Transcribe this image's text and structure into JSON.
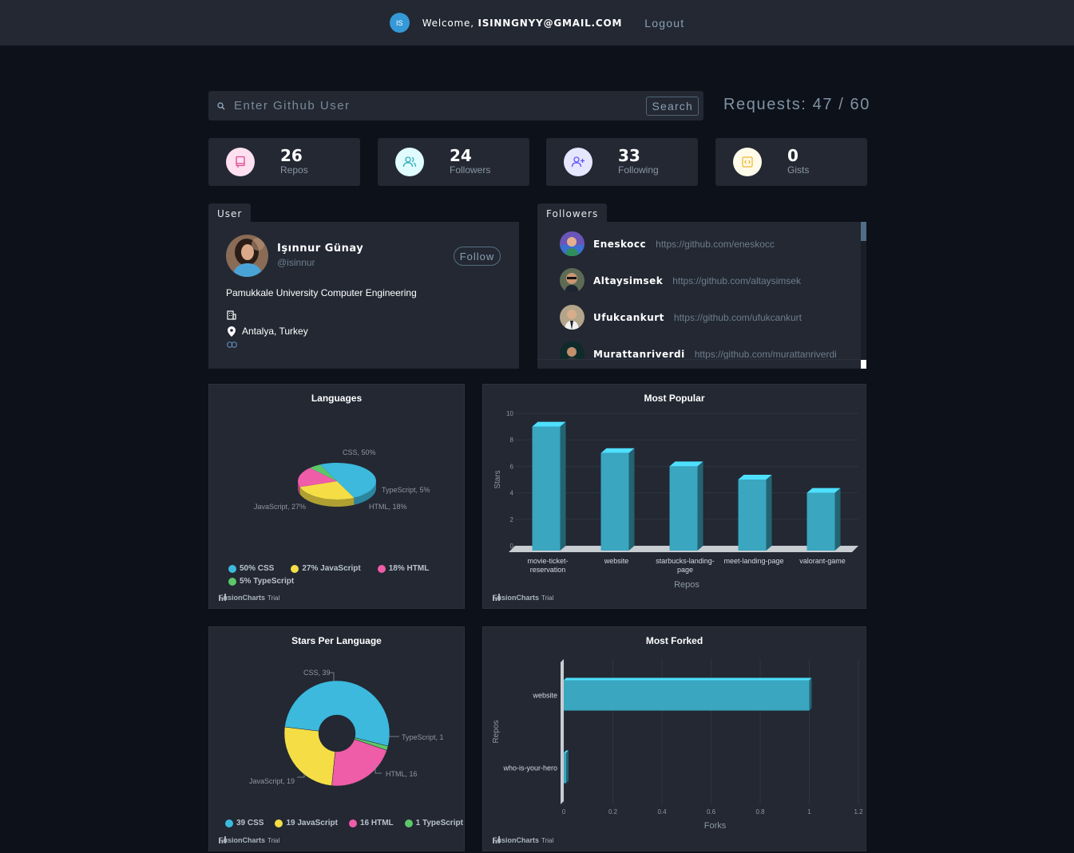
{
  "navbar": {
    "avatar_initials": "IS",
    "welcome_prefix": "Welcome, ",
    "user_email": "ISINNGNYY@GMAIL.COM",
    "logout_label": "Logout"
  },
  "search": {
    "placeholder": "Enter Github User",
    "button_label": "Search",
    "requests_text": "Requests: 47 / 60"
  },
  "stats": [
    {
      "value": "26",
      "label": "Repos",
      "icon": "repo-icon",
      "color": "#da4a91",
      "bg": "#ffe0f0"
    },
    {
      "value": "24",
      "label": "Followers",
      "icon": "users-icon",
      "color": "#2caeba",
      "bg": "#e0fcff"
    },
    {
      "value": "33",
      "label": "Following",
      "icon": "user-plus-icon",
      "color": "#5d55fa",
      "bg": "#e6e6ff"
    },
    {
      "value": "0",
      "label": "Gists",
      "icon": "code-icon",
      "color": "#f0b429",
      "bg": "#fffbea"
    }
  ],
  "user": {
    "tab_label": "User",
    "name": "Işınnur Günay",
    "handle": "@isinnur",
    "follow_label": "Follow",
    "bio": "Pamukkale University Computer Engineering",
    "company": "",
    "location": "Antalya, Turkey",
    "blog": ""
  },
  "followers": {
    "tab_label": "Followers",
    "items": [
      {
        "name": "Eneskocc",
        "url": "https://github.com/eneskocc"
      },
      {
        "name": "Altaysimsek",
        "url": "https://github.com/altaysimsek"
      },
      {
        "name": "Ufukcankurt",
        "url": "https://github.com/ufukcankurt"
      },
      {
        "name": "Murattanriverdi",
        "url": "https://github.com/murattanriverdi"
      }
    ]
  },
  "branding": {
    "name": "FusionCharts",
    "suffix": "Trial"
  },
  "colors": {
    "css": "#3cb9dd",
    "javascript": "#f5de45",
    "html": "#ef5ca8",
    "typescript": "#5cc768",
    "bar": "#3aa6c0"
  },
  "chart_data": [
    {
      "type": "pie",
      "title": "Languages",
      "labels": [
        "CSS",
        "JavaScript",
        "HTML",
        "TypeScript"
      ],
      "values": [
        50,
        27,
        18,
        5
      ],
      "slice_labels": [
        "CSS, 50%",
        "JavaScript, 27%",
        "HTML, 18%",
        "TypeScript, 5%"
      ],
      "legend": [
        "50% CSS",
        "27% JavaScript",
        "18% HTML",
        "5% TypeScript"
      ],
      "style": "3d"
    },
    {
      "type": "bar",
      "title": "Most Popular",
      "categories": [
        "movie-ticket-reservation",
        "website",
        "starbucks-landing-page",
        "meet-landing-page",
        "valorant-game"
      ],
      "category_lines": [
        [
          "movie-ticket-",
          "reservation"
        ],
        [
          "website"
        ],
        [
          "starbucks-landing-",
          "page"
        ],
        [
          "meet-landing-page"
        ],
        [
          "valorant-game"
        ]
      ],
      "values": [
        9,
        7,
        6,
        5,
        4
      ],
      "xlabel": "Repos",
      "ylabel": "Stars",
      "ylim": [
        0,
        10
      ],
      "yticks": [
        0,
        2,
        4,
        6,
        8,
        10
      ],
      "style": "3d"
    },
    {
      "type": "pie",
      "title": "Stars Per Language",
      "labels": [
        "CSS",
        "JavaScript",
        "HTML",
        "TypeScript"
      ],
      "values": [
        39,
        19,
        16,
        1
      ],
      "slice_labels": [
        "CSS, 39",
        "JavaScript, 19",
        "HTML, 16",
        "TypeScript, 1"
      ],
      "legend": [
        "39 CSS",
        "19 JavaScript",
        "16 HTML",
        "1 TypeScript"
      ],
      "style": "doughnut"
    },
    {
      "type": "bar",
      "orientation": "horizontal",
      "title": "Most Forked",
      "categories": [
        "website",
        "who-is-your-hero"
      ],
      "values": [
        1,
        0
      ],
      "xlabel": "Forks",
      "ylabel": "Repos",
      "xlim": [
        0,
        1.2
      ],
      "xticks": [
        "0",
        "0.2",
        "0.4",
        "0.6",
        "0.8",
        "1",
        "1.2"
      ]
    }
  ]
}
